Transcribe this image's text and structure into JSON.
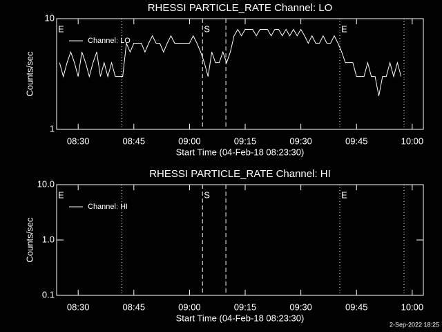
{
  "chart_data": [
    {
      "type": "line",
      "title": "RHESSI PARTICLE_RATE Channel: LO",
      "xlabel": "Start Time (04-Feb-18 08:23:30)",
      "ylabel": "Counts/sec",
      "log_y": true,
      "x": [
        505,
        506,
        507,
        508,
        509,
        510,
        511,
        512,
        513,
        514,
        515,
        516,
        517,
        518,
        519,
        520,
        521,
        522,
        523,
        524,
        525,
        526,
        527,
        528,
        529,
        530,
        531,
        532,
        533,
        534,
        535,
        536,
        537,
        538,
        539,
        540,
        541,
        542,
        543,
        544,
        545,
        546,
        547,
        548,
        549,
        550,
        551,
        552,
        553,
        554,
        555,
        556,
        557,
        558,
        559,
        560,
        561,
        562,
        563,
        564,
        565,
        566,
        567,
        568,
        569,
        570,
        571,
        572,
        573,
        574,
        575,
        576,
        577,
        578,
        579,
        580,
        581,
        582,
        583,
        584,
        585,
        586,
        587,
        588,
        589,
        590,
        591,
        592,
        593,
        594,
        595,
        596,
        597
      ],
      "series": [
        {
          "name": "Channel: LO",
          "color": "#ffffff",
          "values": [
            4,
            3,
            4,
            5,
            4,
            3,
            5,
            4,
            3,
            4,
            5,
            3,
            4,
            3,
            4,
            3,
            3,
            3,
            6,
            5,
            6,
            6,
            6,
            5,
            6,
            7,
            6,
            6,
            5,
            6,
            7,
            6,
            6,
            6,
            6,
            6,
            7,
            6,
            5,
            4,
            3,
            5,
            4,
            4,
            5,
            4,
            5,
            7,
            8,
            7,
            8,
            8,
            8,
            7,
            8,
            8,
            8,
            7,
            8,
            8,
            7,
            8,
            7,
            8,
            7,
            8,
            7,
            6,
            7,
            6,
            6,
            7,
            6,
            6,
            7,
            6,
            5,
            4,
            4,
            4,
            3,
            3,
            3,
            4,
            3,
            3,
            2,
            3,
            3,
            4,
            3,
            4,
            3
          ]
        }
      ],
      "xlim": [
        504.2,
        603
      ],
      "xticks": [
        {
          "value": 510,
          "label": "08:30"
        },
        {
          "value": 525,
          "label": "08:45"
        },
        {
          "value": 540,
          "label": "09:00"
        },
        {
          "value": 555,
          "label": "09:15"
        },
        {
          "value": 570,
          "label": "09:30"
        },
        {
          "value": 585,
          "label": "09:45"
        },
        {
          "value": 600,
          "label": "10:00"
        }
      ],
      "ylim": [
        1,
        10
      ],
      "yticks": [
        1,
        10
      ],
      "vlines": [
        {
          "x": 521.7,
          "style": "dotted"
        },
        {
          "x": 543.5,
          "style": "dashed"
        },
        {
          "x": 549.8,
          "style": "dashed"
        },
        {
          "x": 580.5,
          "style": "dotted"
        },
        {
          "x": 597.8,
          "style": "dotted"
        }
      ],
      "flags": [
        {
          "x": 504.2,
          "label": "E"
        },
        {
          "x": 543.5,
          "label": "S"
        },
        {
          "x": 580.5,
          "label": "E"
        }
      ]
    },
    {
      "type": "line",
      "title": "RHESSI PARTICLE_RATE Channel: HI",
      "xlabel": "Start Time (04-Feb-18 08:23:30)",
      "ylabel": "Counts/sec",
      "log_y": true,
      "x": [],
      "series": [
        {
          "name": "Channel: HI",
          "color": "#ffffff",
          "values": []
        }
      ],
      "xlim": [
        504.2,
        603
      ],
      "xticks": [
        {
          "value": 510,
          "label": "08:30"
        },
        {
          "value": 525,
          "label": "08:45"
        },
        {
          "value": 540,
          "label": "09:00"
        },
        {
          "value": 555,
          "label": "09:15"
        },
        {
          "value": 570,
          "label": "09:30"
        },
        {
          "value": 585,
          "label": "09:45"
        },
        {
          "value": 600,
          "label": "10:00"
        }
      ],
      "ylim": [
        0.1,
        10
      ],
      "yticks": [
        {
          "value": 0.1,
          "label": "0.1"
        },
        {
          "value": 1,
          "label": "1.0"
        },
        {
          "value": 10,
          "label": "10.0"
        }
      ],
      "vlines": [
        {
          "x": 521.7,
          "style": "dotted"
        },
        {
          "x": 543.5,
          "style": "dashed"
        },
        {
          "x": 549.8,
          "style": "dashed"
        },
        {
          "x": 580.5,
          "style": "dotted"
        },
        {
          "x": 597.8,
          "style": "dotted"
        }
      ],
      "flags": [
        {
          "x": 504.2,
          "label": "E"
        },
        {
          "x": 543.5,
          "label": "S"
        },
        {
          "x": 580.5,
          "label": "E"
        }
      ]
    }
  ],
  "footer": "2-Sep-2022 18:25"
}
